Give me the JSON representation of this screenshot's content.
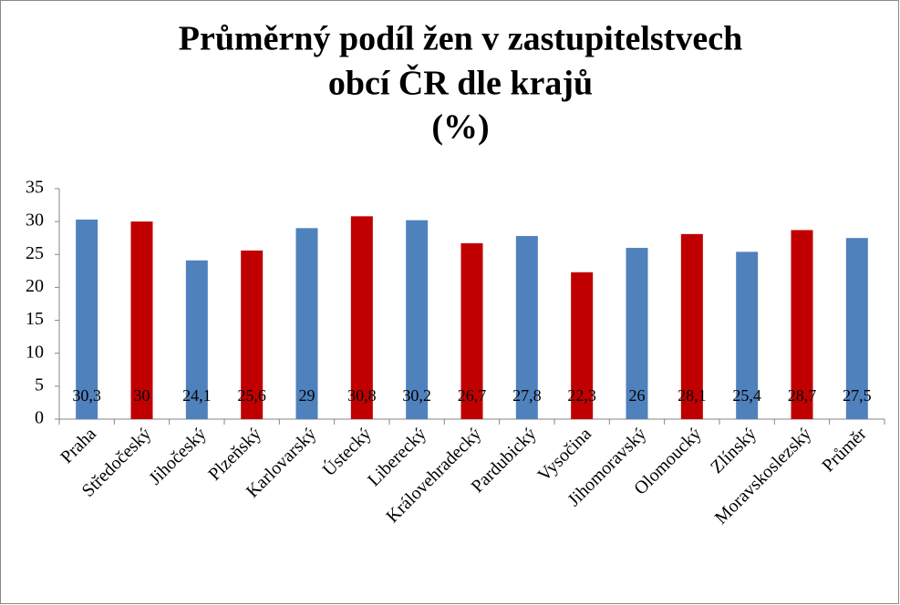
{
  "chart_data": {
    "type": "bar",
    "title": [
      "Průměrný podíl žen v zastupitelstvech",
      "obcí ČR dle krajů",
      "(%)"
    ],
    "categories": [
      "Praha",
      "Středočeský",
      "Jihočeský",
      "Plzeňský",
      "Karlovarský",
      "Ústecký",
      "Liberecký",
      "Královehradecký",
      "Pardubický",
      "Vysočina",
      "Jihomoravský",
      "Olomoucký",
      "Zlínský",
      "Moravskoslezský",
      "Průměr"
    ],
    "values": [
      30.3,
      30,
      24.1,
      25.6,
      29,
      30.8,
      30.2,
      26.7,
      27.8,
      22.3,
      26,
      28.1,
      25.4,
      28.7,
      27.5
    ],
    "value_labels": [
      "30,3",
      "30",
      "24,1",
      "25,6",
      "29",
      "30,8",
      "30,2",
      "26,7",
      "27,8",
      "22,3",
      "26",
      "28,1",
      "25,4",
      "28,7",
      "27,5"
    ],
    "colors": [
      "#4f81bd",
      "#c00000",
      "#4f81bd",
      "#c00000",
      "#4f81bd",
      "#c00000",
      "#4f81bd",
      "#c00000",
      "#4f81bd",
      "#c00000",
      "#4f81bd",
      "#c00000",
      "#4f81bd",
      "#c00000",
      "#4f81bd"
    ],
    "ylim": [
      0,
      35
    ],
    "yticks": [
      0,
      5,
      10,
      15,
      20,
      25,
      30,
      35
    ],
    "grid": false
  }
}
